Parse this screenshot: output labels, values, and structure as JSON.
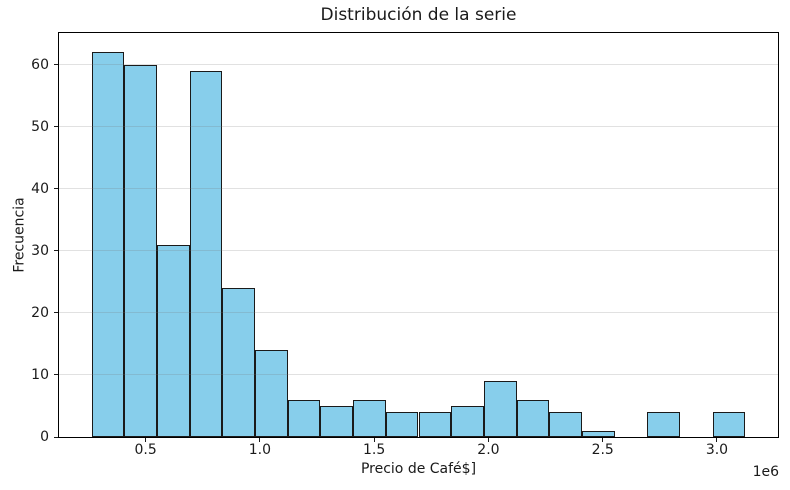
{
  "chart_data": {
    "type": "bar",
    "subtype": "histogram",
    "title": "Distribución de la serie",
    "xlabel": "Precio de Café$]",
    "ylabel": "Frecuencia",
    "x_offset_label": "1e6",
    "bin_start": 264000,
    "bin_width": 143000,
    "counts": [
      62,
      60,
      31,
      59,
      24,
      14,
      6,
      5,
      6,
      4,
      4,
      5,
      9,
      6,
      4,
      1,
      0,
      4,
      0,
      4
    ],
    "xlim": [
      121000,
      3267000
    ],
    "ylim": [
      0,
      65.1
    ],
    "x_ticks": [
      500000,
      1000000,
      1500000,
      2000000,
      2500000,
      3000000
    ],
    "x_tick_labels": [
      "0.5",
      "1.0",
      "1.5",
      "2.0",
      "2.5",
      "3.0"
    ],
    "y_ticks": [
      0,
      10,
      20,
      30,
      40,
      50,
      60
    ],
    "y_tick_labels": [
      "0",
      "10",
      "20",
      "30",
      "40",
      "50",
      "60"
    ],
    "bar_color": "#87CEEB",
    "bar_edge_color": "#1a1a1a",
    "grid": "y",
    "grid_color": "rgba(120,120,120,0.22)",
    "legend": "none"
  }
}
